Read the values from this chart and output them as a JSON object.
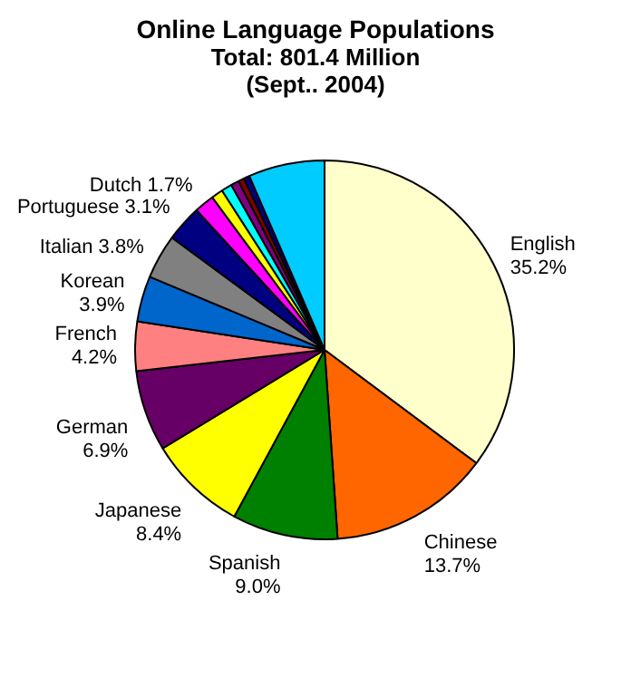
{
  "chart_data": {
    "type": "pie",
    "title": "Online Language Populations",
    "subtitle": "Total: 801.4 Million\n(Sept.. 2004)",
    "categories": [
      "English",
      "Chinese",
      "Spanish",
      "Japanese",
      "German",
      "French",
      "Korean",
      "Italian",
      "Portuguese",
      "Dutch",
      null,
      null,
      null,
      null,
      null,
      null
    ],
    "values": [
      35.2,
      13.7,
      9.0,
      8.4,
      6.9,
      4.2,
      3.9,
      3.8,
      3.1,
      1.7,
      1.0,
      0.9,
      0.7,
      0.5,
      0.5,
      6.5
    ],
    "value_labels": [
      "35.2%",
      "13.7%",
      "9.0%",
      "8.4%",
      "6.9%",
      "4.2%",
      "3.9%",
      "3.8%",
      "3.1%",
      "1.7%",
      null,
      null,
      null,
      null,
      null,
      null
    ],
    "colors": [
      "#ffffcc",
      "#ff6600",
      "#008000",
      "#ffff00",
      "#660066",
      "#ff8080",
      "#0066cc",
      "#808080",
      "#000080",
      "#ff00ff",
      "#ffff00",
      "#00ffff",
      "#800080",
      "#800000",
      "#000080",
      "#00ccff"
    ],
    "legend": false
  }
}
